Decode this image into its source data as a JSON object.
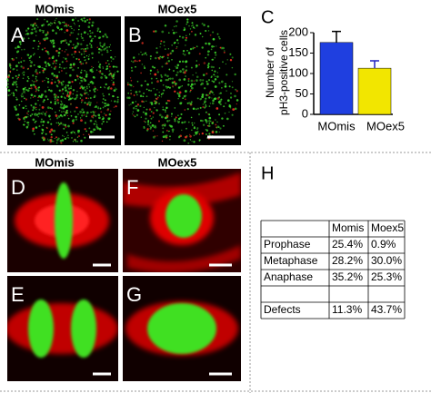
{
  "panels": {
    "top_columns": [
      "MOmis",
      "MOex5"
    ],
    "a": "A",
    "b": "B",
    "c": "C",
    "bottom_columns": [
      "MOmis",
      "MOex5"
    ],
    "d": "D",
    "e": "E",
    "f": "F",
    "g": "G",
    "h": "H"
  },
  "chart_data": {
    "type": "bar",
    "ylabel": [
      "Number of",
      "pH3-positive cells"
    ],
    "categories": [
      "MOmis",
      "MOex5"
    ],
    "values": [
      176,
      113
    ],
    "errors": [
      27,
      18
    ],
    "colors": [
      "#1f3fe0",
      "#f2e600"
    ],
    "ylim": [
      0,
      200
    ],
    "yticks": [
      0,
      50,
      100,
      150,
      200
    ]
  },
  "table": {
    "header": [
      "Momis",
      "Moex5"
    ],
    "rows": [
      [
        "Prophase",
        "25.4%",
        "0.9%"
      ],
      [
        "Metaphase",
        "28.2%",
        "30.0%"
      ],
      [
        "Anaphase",
        "35.2%",
        "25.3%"
      ],
      [
        "Defects",
        "11.3%",
        "43.7%"
      ]
    ]
  }
}
